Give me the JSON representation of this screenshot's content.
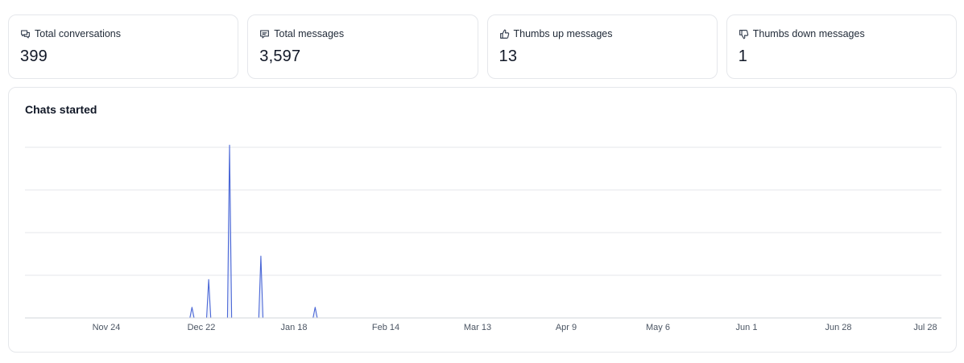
{
  "stats": [
    {
      "label": "Total conversations",
      "value": "399",
      "icon": "chat-bubbles-icon"
    },
    {
      "label": "Total messages",
      "value": "3,597",
      "icon": "message-icon"
    },
    {
      "label": "Thumbs up messages",
      "value": "13",
      "icon": "thumbs-up-icon"
    },
    {
      "label": "Thumbs down messages",
      "value": "1",
      "icon": "thumbs-down-icon"
    }
  ],
  "colors": {
    "series": "#4a67d6",
    "series_fill": "#c7d2f5",
    "partial": "#b5b5b5",
    "grid": "#e5e7eb",
    "border": "#e5e7eb"
  },
  "chart_data": {
    "type": "area",
    "title": "Chats started",
    "x_ticks": [
      "Nov 24",
      "Dec 22",
      "Jan 18",
      "Feb 14",
      "Mar 13",
      "Apr 9",
      "May 6",
      "Jun 1",
      "Jun 28",
      "Jul 28"
    ],
    "y_ticks_shown": false,
    "grid": true,
    "ylim": [
      0,
      8
    ],
    "series": [
      {
        "values": [
          0,
          0,
          0,
          0,
          0,
          0,
          0,
          0,
          0,
          0,
          0,
          0,
          0,
          0,
          0,
          0,
          0,
          0,
          0,
          0,
          0,
          0,
          0,
          0,
          0,
          0,
          0,
          0,
          0,
          0,
          0,
          0,
          0,
          0,
          0,
          0,
          0,
          0,
          0,
          0,
          0,
          0,
          0,
          0,
          0,
          0,
          0,
          0,
          0,
          0,
          0,
          0,
          0,
          0,
          0,
          0,
          0,
          0,
          0,
          0,
          0,
          0,
          0,
          0,
          0,
          0,
          0,
          0,
          0,
          0,
          0,
          0,
          0,
          0,
          0,
          0,
          0,
          0,
          0,
          0,
          0.5,
          0,
          0,
          0,
          0,
          0,
          0,
          0,
          1.8,
          0,
          0,
          0,
          0,
          0,
          0,
          0,
          0,
          0,
          8.1,
          0,
          0,
          0,
          0,
          0,
          0,
          0,
          0,
          0,
          0,
          0,
          0,
          0,
          0,
          2.9,
          0,
          0,
          0,
          0,
          0,
          0,
          0,
          0,
          0,
          0,
          0,
          0,
          0,
          0,
          0,
          0,
          0,
          0,
          0,
          0,
          0,
          0,
          0,
          0,
          0,
          0.5,
          0,
          0,
          0,
          0,
          0,
          0,
          0,
          0,
          0,
          0,
          0,
          0,
          0,
          0,
          0,
          0,
          0,
          0,
          0,
          0,
          0,
          0,
          0,
          0,
          0,
          0,
          0,
          0,
          0,
          0,
          0,
          0,
          0,
          0,
          0,
          0,
          0,
          0,
          0,
          0,
          0,
          0,
          0,
          0,
          0,
          0,
          0,
          0,
          0,
          0,
          0,
          0,
          0,
          0,
          0,
          0,
          0,
          0,
          0,
          0,
          0,
          0,
          0,
          0,
          0,
          0,
          0,
          0,
          0,
          0,
          0,
          0,
          0,
          0,
          0,
          0,
          0,
          0,
          0,
          0,
          0,
          0,
          0,
          0,
          0,
          0,
          0,
          0,
          0,
          0,
          0,
          0,
          0,
          0,
          0,
          0,
          0,
          0,
          0,
          0,
          0,
          0,
          0,
          0,
          0,
          0,
          0,
          0,
          0,
          0,
          0,
          0,
          0,
          0,
          0,
          0,
          0,
          0,
          0,
          0,
          0,
          0,
          0,
          0,
          0,
          0,
          0,
          0,
          0,
          0,
          0,
          0,
          0,
          0,
          0,
          0,
          0,
          0,
          0,
          0,
          0,
          0,
          0,
          0,
          0,
          0,
          0,
          0,
          0,
          0,
          0,
          0,
          0,
          0,
          0,
          0,
          0,
          0,
          0,
          0,
          0,
          0,
          0,
          0,
          0,
          0,
          0,
          0,
          0,
          0,
          0,
          0,
          0,
          0,
          0,
          0,
          0,
          0,
          0,
          0,
          0,
          0,
          0,
          0,
          0,
          0,
          0,
          0,
          0,
          0,
          0,
          0,
          0,
          0,
          0,
          0,
          0,
          0,
          0,
          0,
          0,
          0,
          0,
          0,
          0,
          0,
          0,
          0,
          0,
          0,
          0,
          0,
          0,
          0,
          0,
          0,
          0,
          0,
          0,
          0,
          0,
          0,
          0,
          0,
          0,
          0,
          0,
          0,
          0,
          0,
          0,
          0,
          0,
          0,
          0,
          0,
          0,
          0,
          0,
          0,
          0,
          0,
          0,
          0,
          0,
          0,
          0,
          0,
          0,
          0,
          0,
          0,
          0,
          0,
          0,
          0,
          0,
          0,
          0,
          0,
          0,
          0,
          0,
          0,
          0,
          0,
          0,
          0,
          0,
          0,
          0,
          0,
          0,
          0,
          0,
          0,
          0,
          0,
          0,
          0,
          0,
          0,
          0,
          0,
          0,
          0,
          0,
          0,
          0,
          0,
          0,
          0,
          0,
          0,
          0,
          0,
          0,
          0,
          0,
          0
        ]
      }
    ]
  }
}
